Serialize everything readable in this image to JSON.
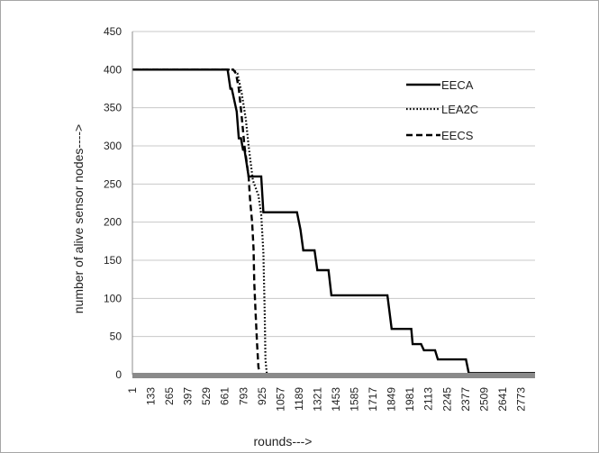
{
  "chart_data": {
    "type": "line",
    "title": "",
    "xlabel": "rounds--->",
    "ylabel": "number of alive sensor  nodes---->",
    "ylim": [
      0,
      450
    ],
    "xlim": [
      1,
      2873
    ],
    "grid": true,
    "legend_position": "top-right",
    "y_ticks": [
      "0",
      "50",
      "100",
      "150",
      "200",
      "250",
      "300",
      "350",
      "400",
      "450"
    ],
    "x_ticks": [
      "1",
      "133",
      "265",
      "397",
      "529",
      "661",
      "793",
      "925",
      "1057",
      "1189",
      "1321",
      "1453",
      "1585",
      "1717",
      "1849",
      "1981",
      "2113",
      "2245",
      "2377",
      "2509",
      "2641",
      "2773"
    ],
    "series": [
      {
        "name": "EECA",
        "style": "solid",
        "color": "#000000",
        "x": [
          1,
          680,
          700,
          710,
          745,
          760,
          775,
          790,
          800,
          830,
          845,
          920,
          935,
          1175,
          1200,
          1220,
          1300,
          1320,
          1400,
          1420,
          1500,
          1520,
          1820,
          1850,
          1990,
          2000,
          2060,
          2080,
          2160,
          2180,
          2380,
          2400,
          2873
        ],
        "y": [
          400,
          400,
          375,
          375,
          345,
          310,
          310,
          295,
          295,
          260,
          260,
          260,
          213,
          213,
          190,
          163,
          163,
          137,
          137,
          104,
          104,
          104,
          104,
          60,
          60,
          40,
          40,
          32,
          32,
          20,
          20,
          2,
          2
        ]
      },
      {
        "name": "LEA2C",
        "style": "dotted",
        "color": "#000000",
        "x": [
          1,
          720,
          750,
          780,
          810,
          830,
          860,
          900,
          920,
          935,
          945,
          950,
          960,
          1000,
          2873
        ],
        "y": [
          400,
          400,
          395,
          370,
          335,
          300,
          255,
          235,
          210,
          160,
          80,
          20,
          0,
          0,
          0
        ]
      },
      {
        "name": "EECS",
        "style": "dashed",
        "color": "#000000",
        "x": [
          1,
          700,
          720,
          740,
          760,
          780,
          800,
          830,
          840,
          855,
          865,
          870,
          880,
          890,
          900,
          910,
          2873
        ],
        "y": [
          400,
          400,
          400,
          395,
          375,
          340,
          300,
          260,
          230,
          200,
          165,
          120,
          80,
          40,
          10,
          0,
          0
        ]
      }
    ]
  }
}
